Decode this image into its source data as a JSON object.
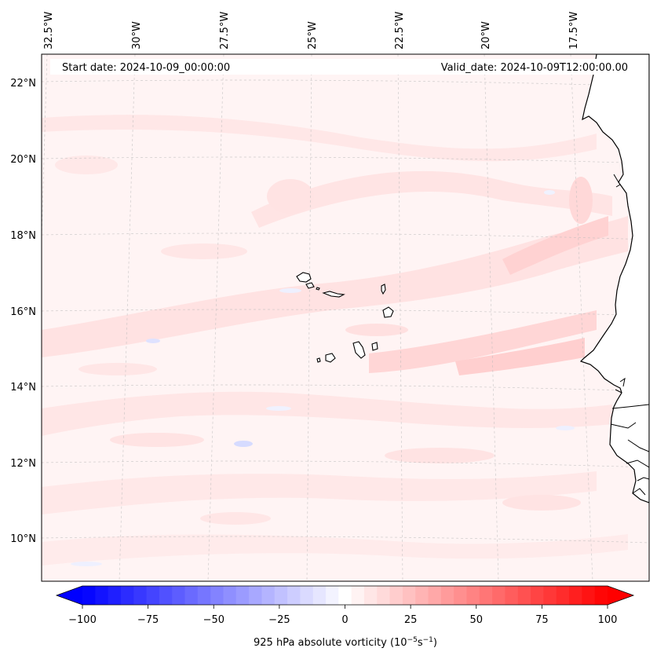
{
  "map": {
    "start_label": "Start date: 2024-10-09_00:00:00",
    "valid_label": "Valid_date: 2024-10-09T12:00:00.00",
    "lon_labels": [
      "32.5°W",
      "30°W",
      "27.5°W",
      "25°W",
      "22.5°W",
      "20°W",
      "17.5°W"
    ],
    "lat_labels": [
      "22°N",
      "20°N",
      "18°N",
      "16°N",
      "14°N",
      "12°N",
      "10°N"
    ],
    "field_colors": {
      "base": "#fff4f4",
      "light": "#ffe4e4",
      "mid": "#ffd2d2",
      "blue": "#eef0ff",
      "coast": "#000000"
    }
  },
  "colorbar": {
    "title": "925 hPa absolute vorticity (10",
    "title_exp1": "−5",
    "title_mid": "s",
    "title_exp2": "−1",
    "title_end": ")",
    "ticks": [
      "−100",
      "−75",
      "−50",
      "−25",
      "0",
      "25",
      "50",
      "75",
      "100"
    ],
    "min": -100,
    "max": 100,
    "levels": 41,
    "low_color": "#0000ff",
    "high_color": "#ff0000"
  }
}
